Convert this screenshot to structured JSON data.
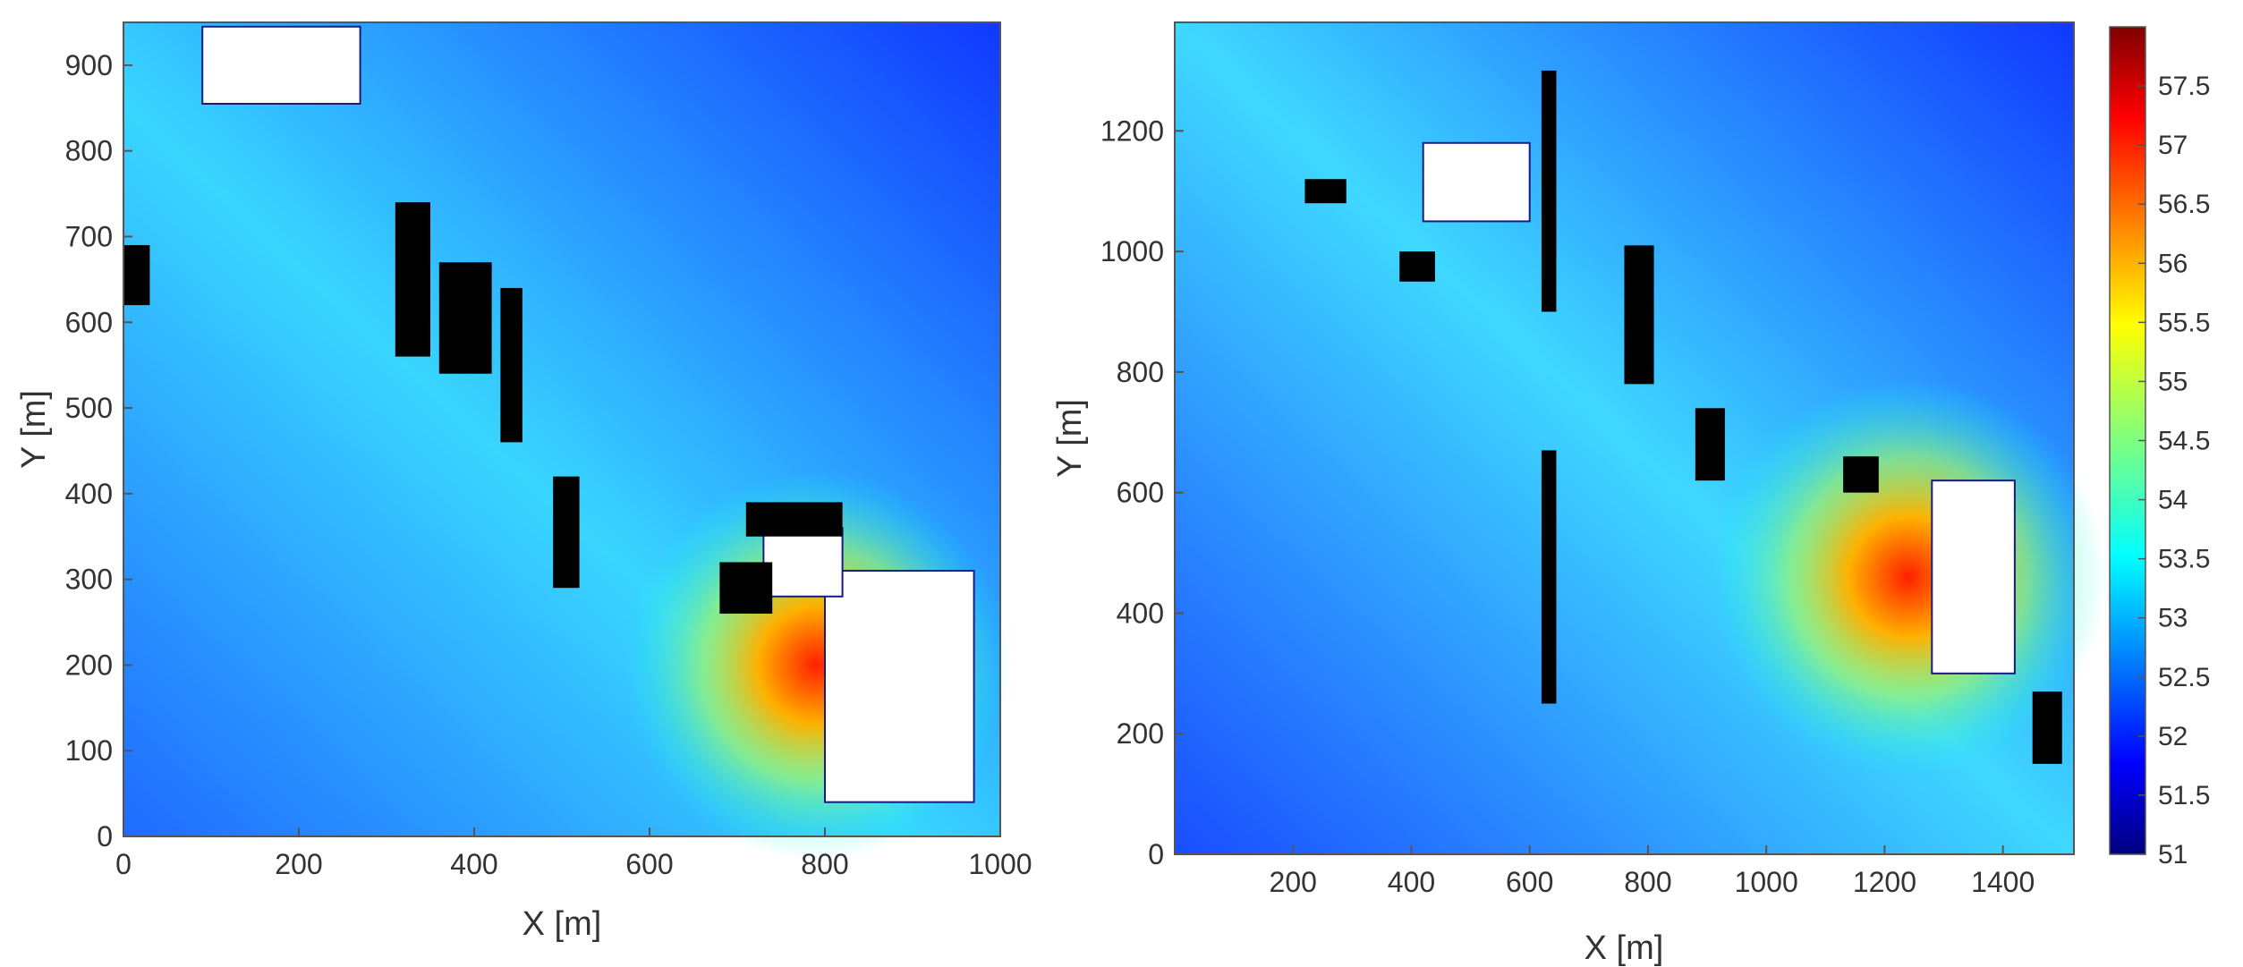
{
  "chart_data": [
    {
      "type": "heatmap",
      "panel": "left",
      "xlabel": "X [m]",
      "ylabel": "Y [m]",
      "xlim": [
        0,
        1000
      ],
      "ylim": [
        0,
        950
      ],
      "xticks": [
        "0",
        "200",
        "400",
        "600",
        "800",
        "1000"
      ],
      "yticks": [
        "0",
        "100",
        "200",
        "300",
        "400",
        "500",
        "600",
        "700",
        "800",
        "900"
      ],
      "color_range": [
        51,
        58
      ],
      "hotspot": {
        "x": 790,
        "y": 200,
        "value": 57
      },
      "obstacles": [
        {
          "x": 90,
          "y": 855,
          "w": 180,
          "h": 90,
          "color": "#ffffff"
        },
        {
          "x": 800,
          "y": 40,
          "w": 170,
          "h": 270,
          "color": "#ffffff"
        },
        {
          "x": 730,
          "y": 280,
          "w": 90,
          "h": 80,
          "color": "#ffffff"
        },
        {
          "x": 310,
          "y": 560,
          "w": 40,
          "h": 180,
          "color": "#000000"
        },
        {
          "x": 360,
          "y": 540,
          "w": 60,
          "h": 130,
          "color": "#000000"
        },
        {
          "x": 430,
          "y": 460,
          "w": 25,
          "h": 180,
          "color": "#000000"
        },
        {
          "x": 490,
          "y": 290,
          "w": 30,
          "h": 130,
          "color": "#000000"
        },
        {
          "x": 680,
          "y": 260,
          "w": 60,
          "h": 60,
          "color": "#000000"
        },
        {
          "x": 710,
          "y": 350,
          "w": 110,
          "h": 40,
          "color": "#000000"
        },
        {
          "x": 0,
          "y": 620,
          "w": 30,
          "h": 70,
          "color": "#000000"
        }
      ]
    },
    {
      "type": "heatmap",
      "panel": "right",
      "xlabel": "X [m]",
      "ylabel": "Y [m]",
      "xlim": [
        0,
        1520
      ],
      "ylim": [
        0,
        1380
      ],
      "xticks": [
        "200",
        "400",
        "600",
        "800",
        "1000",
        "1200",
        "1400"
      ],
      "yticks": [
        "0",
        "200",
        "400",
        "600",
        "800",
        "1000",
        "1200"
      ],
      "color_range": [
        51,
        58
      ],
      "hotspot": {
        "x": 1240,
        "y": 460,
        "value": 57
      },
      "obstacles": [
        {
          "x": 1280,
          "y": 300,
          "w": 140,
          "h": 320,
          "color": "#ffffff"
        },
        {
          "x": 420,
          "y": 1050,
          "w": 180,
          "h": 130,
          "color": "#ffffff"
        },
        {
          "x": 620,
          "y": 900,
          "w": 25,
          "h": 400,
          "color": "#000000"
        },
        {
          "x": 620,
          "y": 250,
          "w": 25,
          "h": 420,
          "color": "#000000"
        },
        {
          "x": 760,
          "y": 780,
          "w": 50,
          "h": 230,
          "color": "#000000"
        },
        {
          "x": 880,
          "y": 620,
          "w": 50,
          "h": 120,
          "color": "#000000"
        },
        {
          "x": 1130,
          "y": 600,
          "w": 60,
          "h": 60,
          "color": "#000000"
        },
        {
          "x": 220,
          "y": 1080,
          "w": 70,
          "h": 40,
          "color": "#000000"
        },
        {
          "x": 380,
          "y": 950,
          "w": 60,
          "h": 50,
          "color": "#000000"
        },
        {
          "x": 1450,
          "y": 150,
          "w": 50,
          "h": 120,
          "color": "#000000"
        }
      ]
    }
  ],
  "colorbar": {
    "min": 51,
    "max": 58,
    "ticks": [
      "51",
      "51.5",
      "52",
      "52.5",
      "53",
      "53.5",
      "54",
      "54.5",
      "55",
      "55.5",
      "56",
      "56.5",
      "57",
      "57.5"
    ]
  }
}
